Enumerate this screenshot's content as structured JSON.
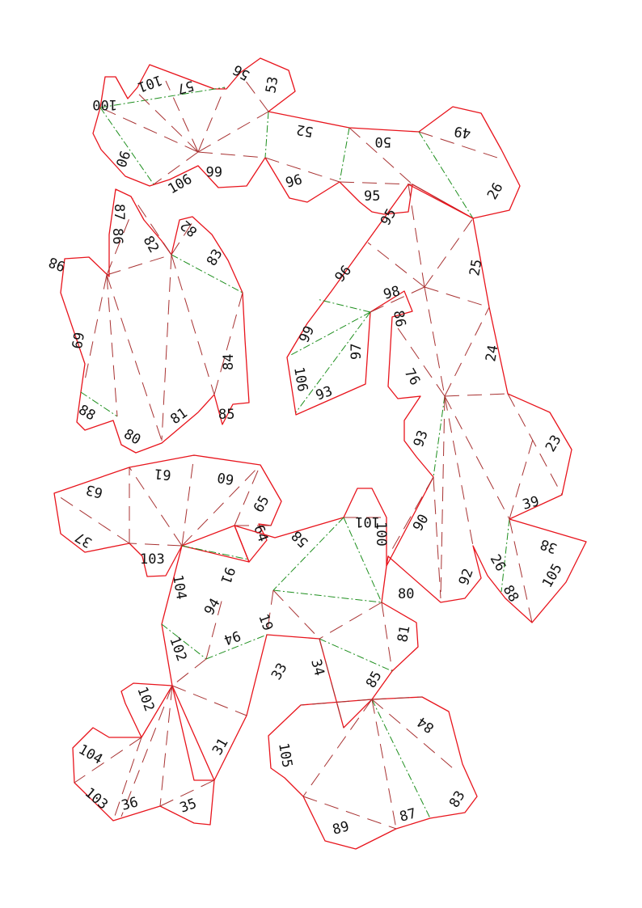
{
  "colors": {
    "cut_line": "#e8141c",
    "valley_fold": "#a83232",
    "mountain_fold": "#1e8f1e",
    "piece_fill": "#f2f2f2",
    "label_text": "#111111"
  },
  "pieces": [
    {
      "name": "piece-top-strip",
      "labels": [
        "100",
        "101",
        "57",
        "56",
        "53",
        "52",
        "50",
        "49",
        "90",
        "106",
        "66",
        "96",
        "95",
        "26"
      ]
    },
    {
      "name": "piece-upper-left",
      "labels": [
        "87",
        "86",
        "82",
        "82",
        "83",
        "98",
        "69",
        "84",
        "88",
        "81",
        "85",
        "80"
      ]
    },
    {
      "name": "piece-right-central",
      "labels": [
        "95",
        "96",
        "98",
        "86",
        "99",
        "97",
        "106",
        "93",
        "76",
        "25",
        "24",
        "93",
        "23",
        "39",
        "38",
        "105",
        "90",
        "26",
        "88",
        "92"
      ]
    },
    {
      "name": "piece-middle-left",
      "labels": [
        "63",
        "61",
        "60",
        "65",
        "37",
        "103",
        "64",
        "91",
        "104"
      ]
    },
    {
      "name": "piece-lower-center",
      "labels": [
        "101",
        "100",
        "58",
        "80",
        "19",
        "94",
        "94",
        "102",
        "33",
        "34",
        "81",
        "85"
      ]
    },
    {
      "name": "piece-bottom-left",
      "labels": [
        "102",
        "104",
        "31",
        "103",
        "36",
        "35"
      ]
    },
    {
      "name": "piece-bottom-right",
      "labels": [
        "105",
        "84",
        "83",
        "87",
        "89"
      ]
    }
  ]
}
